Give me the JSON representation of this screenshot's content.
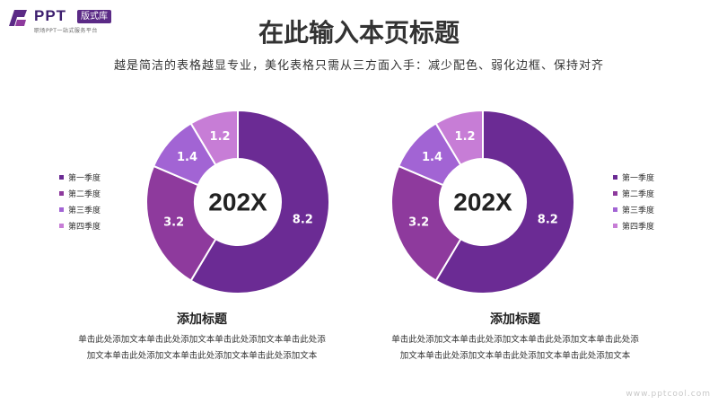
{
  "logo": {
    "brand": "PPT",
    "badge": "版式库",
    "tagline": "职场PPT一站式服务平台"
  },
  "header": {
    "title": "在此输入本页标题",
    "subtitle": "越是简洁的表格越显专业，美化表格只需从三方面入手：减少配色、弱化边框、保持对齐"
  },
  "colors": {
    "q1": "#6b2b94",
    "q2": "#8e3a9d",
    "q3": "#a264d4",
    "q4": "#c77dd6"
  },
  "chart_data": [
    {
      "type": "donut",
      "center_label": "202X",
      "categories": [
        "第一季度",
        "第二季度",
        "第三季度",
        "第四季度"
      ],
      "values": [
        8.2,
        3.2,
        1.4,
        1.2
      ],
      "legend_position": "left"
    },
    {
      "type": "donut",
      "center_label": "202X",
      "categories": [
        "第一季度",
        "第二季度",
        "第三季度",
        "第四季度"
      ],
      "values": [
        8.2,
        3.2,
        1.4,
        1.2
      ],
      "legend_position": "right"
    }
  ],
  "sections": [
    {
      "title": "添加标题",
      "body_line1": "单击此处添加文本单击此处添加文本单击此处添加文本单击此处添",
      "body_line2": "加文本单击此处添加文本单击此处添加文本单击此处添加文本"
    },
    {
      "title": "添加标题",
      "body_line1": "单击此处添加文本单击此处添加文本单击此处添加文本单击此处添",
      "body_line2": "加文本单击此处添加文本单击此处添加文本单击此处添加文本"
    }
  ],
  "watermark": "www.pptcool.com"
}
